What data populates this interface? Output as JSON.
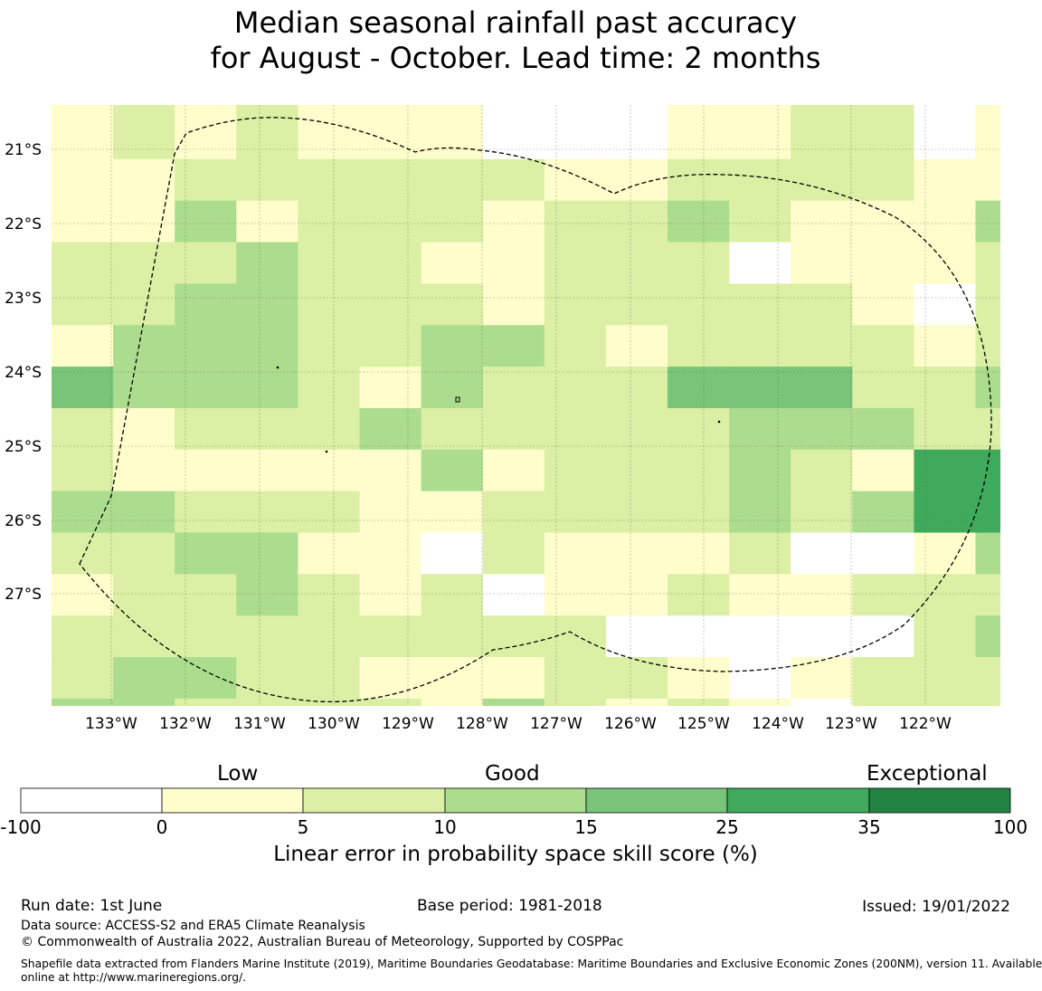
{
  "title": {
    "line1": "Median seasonal rainfall past accuracy",
    "line2": "for August - October. Lead time: 2 months"
  },
  "map": {
    "lon_labels": [
      "133°W",
      "132°W",
      "131°W",
      "130°W",
      "129°W",
      "128°W",
      "127°W",
      "126°W",
      "125°W",
      "124°W",
      "123°W",
      "122°W"
    ],
    "lat_labels": [
      "21°S",
      "22°S",
      "23°S",
      "24°S",
      "25°S",
      "26°S",
      "27°S"
    ],
    "category_colors": [
      "#ffffff",
      "#fefdcb",
      "#dbefa5",
      "#acdd8e",
      "#78c57a",
      "#40aa5c",
      "#218443"
    ],
    "grid_columns": 16,
    "grid_rows": 15,
    "skill_categories_by_row": [
      "1212111000112201",
      "1122222211222211",
      "1131222122321113",
      "2223221122201112",
      "2233222122222102",
      "1333223321222212",
      "4333213222444223",
      "2122232222233322",
      "2111113122232155",
      "3322211222232355",
      "2233110211120013",
      "1223212011211222",
      "2222222220000023",
      "2332211122101222",
      "3322221321210222"
    ],
    "bottom_strip_categories": "03411122211210111",
    "boundary_style": "dashed"
  },
  "colorbar": {
    "categories": [
      "Low",
      "Good",
      "Exceptional"
    ],
    "ticks": [
      "-100",
      "0",
      "5",
      "10",
      "15",
      "25",
      "35",
      "100"
    ],
    "axis_label": "Linear error in probability space skill score (%)"
  },
  "footer": {
    "run_date": "Run date: 1st June",
    "base_period": "Base period: 1981-2018",
    "issued": "Issued: 19/01/2022",
    "data_source": "Data source: ACCESS-S2 and ERA5 Climate Reanalysis",
    "copyright": "© Commonwealth of Australia 2022, Australian Bureau of Meteorology, Supported by COSPPac",
    "shapefile_line1": "Shapefile data extracted from Flanders Marine Institute (2019), Maritime Boundaries Geodatabase: Maritime Boundaries and Exclusive Economic Zones (200NM), version 11. Available",
    "shapefile_line2": "online at http://www.marineregions.org/."
  }
}
